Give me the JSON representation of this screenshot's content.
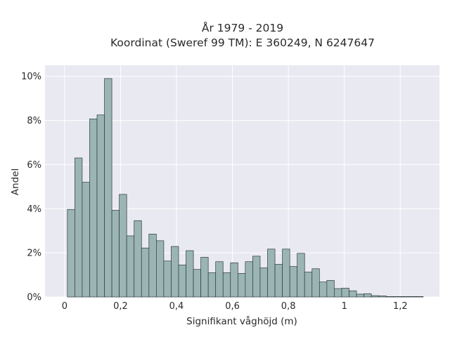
{
  "chart_data": {
    "type": "bar",
    "title": "År 1979 - 2019",
    "subtitle": "Koordinat (Sweref 99 TM): E 360249, N 6247647",
    "xlabel": "Signifikant våghöjd (m)",
    "ylabel": "Andel",
    "xlim": [
      -0.07,
      1.34
    ],
    "ylim": [
      0,
      10.5
    ],
    "x_ticks": [
      0,
      0.2,
      0.4,
      0.6,
      0.8,
      1.0,
      1.2
    ],
    "x_tick_labels": [
      "0",
      "0,2",
      "0,4",
      "0,6",
      "0,8",
      "1",
      "1,2"
    ],
    "y_ticks": [
      0,
      2,
      4,
      6,
      8,
      10
    ],
    "y_tick_labels": [
      "0%",
      "2%",
      "4%",
      "6%",
      "8%",
      "10%"
    ],
    "bin_width": 0.0265,
    "bin_start": 0.01,
    "values": [
      3.97,
      6.3,
      5.2,
      8.07,
      8.25,
      9.9,
      3.93,
      4.65,
      2.77,
      3.46,
      2.22,
      2.85,
      2.55,
      1.63,
      2.29,
      1.45,
      2.1,
      1.25,
      1.8,
      1.1,
      1.6,
      1.1,
      1.55,
      1.07,
      1.6,
      1.85,
      1.32,
      2.17,
      1.48,
      2.17,
      1.38,
      1.98,
      1.13,
      1.28,
      0.68,
      0.75,
      0.38,
      0.4,
      0.28,
      0.13,
      0.15,
      0.06,
      0.05,
      0.02,
      0.02,
      0.02,
      0.02,
      0.02
    ],
    "bar_color": "#9bb4b4",
    "bar_edge_color": "#2f3b3b",
    "background_color": "#e9e9f1",
    "grid": true,
    "grid_color": "#ffffff"
  }
}
